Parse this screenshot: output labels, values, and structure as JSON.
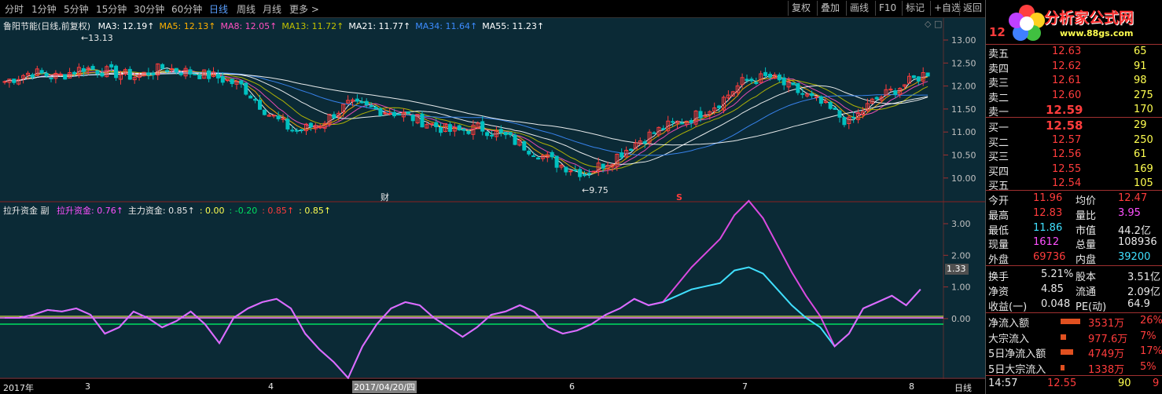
{
  "toolbar": {
    "tabs": [
      "分时",
      "1分钟",
      "5分钟",
      "15分钟",
      "30分钟",
      "60分钟",
      "日线",
      "周线",
      "月线",
      "更多 >"
    ],
    "active_tab": "日线",
    "buttons": [
      "复权",
      "叠加",
      "画线",
      "F10",
      "标记",
      "+自选",
      "返回"
    ]
  },
  "main_chart": {
    "stock_name": "鲁阳节能(日线,前复权)",
    "ma": [
      {
        "label": "MA3: 12.19↑",
        "color": "#ffffff"
      },
      {
        "label": "MA5: 12.13↑",
        "color": "#ffb000"
      },
      {
        "label": "MA8: 12.05↑",
        "color": "#ff50c0"
      },
      {
        "label": "MA13: 11.72↑",
        "color": "#c0c000"
      },
      {
        "label": "MA21: 11.77↑",
        "color": "#ffffff"
      },
      {
        "label": "MA34: 11.64↑",
        "color": "#3c8cff"
      },
      {
        "label": "MA55: 11.23↑",
        "color": "#ffffff"
      }
    ],
    "high_label": "13.13",
    "low_label": "9.75",
    "price_ticks": [
      "13.00",
      "12.50",
      "12.00",
      "11.50",
      "11.00",
      "10.50",
      "10.00"
    ],
    "event_marker_cai": "财",
    "event_marker_s": "S"
  },
  "sub_chart": {
    "title": "拉升资金 副",
    "items": [
      {
        "label": "拉升资金: 0.76↑",
        "color": "#ff50ff"
      },
      {
        "label": "主力资金: 0.85↑",
        "color": "#e8e8e8"
      },
      {
        "label": ": 0.00",
        "color": "#ffff50"
      },
      {
        "label": ": -0.20",
        "color": "#00e060"
      },
      {
        "label": ": 0.85↑",
        "color": "#ff3c3c"
      },
      {
        "label": ": 0.85↑",
        "color": "#ffff50"
      }
    ],
    "ticks": [
      "3.00",
      "2.00",
      "1.00",
      "0.00"
    ],
    "current_value": "1.33"
  },
  "time_axis": {
    "labels": [
      "2017年",
      "3",
      "4",
      "2017/04/20/四",
      "6",
      "7",
      "8"
    ],
    "period": "日线"
  },
  "quote": {
    "symbol_price": "12",
    "logo_text": "分析家公式网",
    "logo_url_text": "www.88gs.com",
    "asks": [
      {
        "label": "卖五",
        "price": "12.63",
        "vol": "65"
      },
      {
        "label": "卖四",
        "price": "12.62",
        "vol": "91"
      },
      {
        "label": "卖三",
        "price": "12.61",
        "vol": "98"
      },
      {
        "label": "卖二",
        "price": "12.60",
        "vol": "275"
      },
      {
        "label": "卖一",
        "price": "12.59",
        "vol": "170"
      }
    ],
    "bids": [
      {
        "label": "买一",
        "price": "12.58",
        "vol": "29"
      },
      {
        "label": "买二",
        "price": "12.57",
        "vol": "250"
      },
      {
        "label": "买三",
        "price": "12.56",
        "vol": "61"
      },
      {
        "label": "买四",
        "price": "12.55",
        "vol": "169"
      },
      {
        "label": "买五",
        "price": "12.54",
        "vol": "105"
      }
    ],
    "stats": [
      {
        "l1": "今开",
        "v1": "11.96",
        "c1": "red",
        "l2": "均价",
        "v2": "12.47",
        "c2": "red"
      },
      {
        "l1": "最高",
        "v1": "12.83",
        "c1": "red",
        "l2": "量比",
        "v2": "3.95",
        "c2": "mag"
      },
      {
        "l1": "最低",
        "v1": "11.86",
        "c1": "cyan",
        "l2": "市值",
        "v2": "44.2亿",
        "c2": "white"
      },
      {
        "l1": "现量",
        "v1": "1612",
        "c1": "mag",
        "l2": "总量",
        "v2": "108936",
        "c2": "white"
      },
      {
        "l1": "外盘",
        "v1": "69736",
        "c1": "red",
        "l2": "内盘",
        "v2": "39200",
        "c2": "cyan"
      }
    ],
    "fund": [
      {
        "l1": "换手",
        "v1": "5.21%",
        "l2": "股本",
        "v2": "3.51亿"
      },
      {
        "l1": "净资",
        "v1": "4.85",
        "l2": "流通",
        "v2": "2.09亿"
      },
      {
        "l1": "收益(一)",
        "v1": "0.048",
        "l2": "PE(动)",
        "v2": "64.9"
      }
    ],
    "flows": [
      {
        "label": "净流入额",
        "value": "3531万",
        "pct": "26%",
        "bar": 0.26
      },
      {
        "label": "大宗流入",
        "value": "977.6万",
        "pct": "7%",
        "bar": 0.07
      },
      {
        "label": "5日净流入额",
        "value": "4749万",
        "pct": "17%",
        "bar": 0.17
      },
      {
        "label": "5日大宗流入",
        "value": "1338万",
        "pct": "5%",
        "bar": 0.05
      }
    ],
    "tick": {
      "time": "14:57",
      "price": "12.55",
      "vol": "90",
      "dir": "9"
    }
  }
}
